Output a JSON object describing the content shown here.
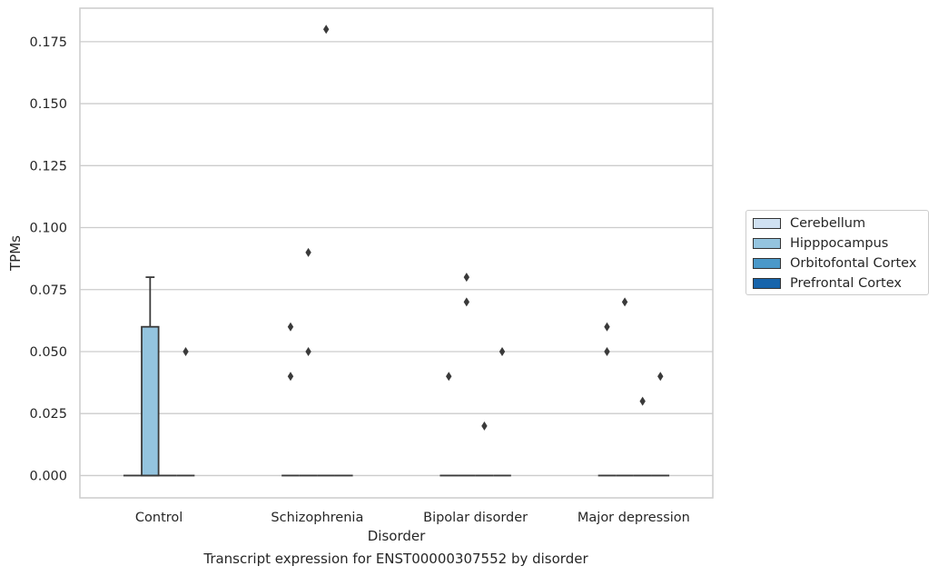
{
  "caption": "Transcript expression for ENST00000307552 by disorder",
  "chart_data": {
    "type": "box",
    "title": "",
    "xlabel": "Disorder",
    "ylabel": "TPMs",
    "ylim": [
      -0.009,
      0.1885
    ],
    "yticks": [
      0.0,
      0.025,
      0.05,
      0.075,
      0.1,
      0.125,
      0.15,
      0.175
    ],
    "ytick_labels": [
      "0.000",
      "0.025",
      "0.050",
      "0.075",
      "0.100",
      "0.125",
      "0.150",
      "0.175"
    ],
    "categories": [
      "Control",
      "Schizophrenia",
      "Bipolar disorder",
      "Major depression"
    ],
    "grid": "horizontal",
    "legend_position": "center-right outside",
    "series": [
      {
        "name": "Cerebellum",
        "color": "#d0e1f2",
        "boxes": [
          {
            "q1": 0,
            "median": 0,
            "q3": 0,
            "whisker_low": 0,
            "whisker_high": 0,
            "outliers": []
          },
          {
            "q1": 0,
            "median": 0,
            "q3": 0,
            "whisker_low": 0,
            "whisker_high": 0,
            "outliers": [
              0.04,
              0.06
            ]
          },
          {
            "q1": 0,
            "median": 0,
            "q3": 0,
            "whisker_low": 0,
            "whisker_high": 0,
            "outliers": [
              0.04
            ]
          },
          {
            "q1": 0,
            "median": 0,
            "q3": 0,
            "whisker_low": 0,
            "whisker_high": 0,
            "outliers": [
              0.05,
              0.06
            ]
          }
        ]
      },
      {
        "name": "Hipppocampus",
        "color": "#94c4df",
        "boxes": [
          {
            "q1": 0,
            "median": 0,
            "q3": 0.06,
            "whisker_low": 0,
            "whisker_high": 0.08,
            "outliers": []
          },
          {
            "q1": 0,
            "median": 0,
            "q3": 0,
            "whisker_low": 0,
            "whisker_high": 0,
            "outliers": [
              0.05,
              0.09
            ]
          },
          {
            "q1": 0,
            "median": 0,
            "q3": 0,
            "whisker_low": 0,
            "whisker_high": 0,
            "outliers": [
              0.07,
              0.08
            ]
          },
          {
            "q1": 0,
            "median": 0,
            "q3": 0,
            "whisker_low": 0,
            "whisker_high": 0,
            "outliers": [
              0.07
            ]
          }
        ]
      },
      {
        "name": "Orbitofontal Cortex",
        "color": "#4a98c9",
        "boxes": [
          {
            "q1": 0,
            "median": 0,
            "q3": 0,
            "whisker_low": 0,
            "whisker_high": 0,
            "outliers": []
          },
          {
            "q1": 0,
            "median": 0,
            "q3": 0,
            "whisker_low": 0,
            "whisker_high": 0,
            "outliers": [
              0.18
            ]
          },
          {
            "q1": 0,
            "median": 0,
            "q3": 0,
            "whisker_low": 0,
            "whisker_high": 0,
            "outliers": [
              0.02
            ]
          },
          {
            "q1": 0,
            "median": 0,
            "q3": 0,
            "whisker_low": 0,
            "whisker_high": 0,
            "outliers": [
              0.03
            ]
          }
        ]
      },
      {
        "name": "Prefrontal Cortex",
        "color": "#1764ab",
        "boxes": [
          {
            "q1": 0,
            "median": 0,
            "q3": 0,
            "whisker_low": 0,
            "whisker_high": 0,
            "outliers": [
              0.05
            ]
          },
          {
            "q1": 0,
            "median": 0,
            "q3": 0,
            "whisker_low": 0,
            "whisker_high": 0,
            "outliers": []
          },
          {
            "q1": 0,
            "median": 0,
            "q3": 0,
            "whisker_low": 0,
            "whisker_high": 0,
            "outliers": [
              0.05
            ]
          },
          {
            "q1": 0,
            "median": 0,
            "q3": 0,
            "whisker_low": 0,
            "whisker_high": 0,
            "outliers": [
              0.04
            ]
          }
        ]
      }
    ]
  }
}
